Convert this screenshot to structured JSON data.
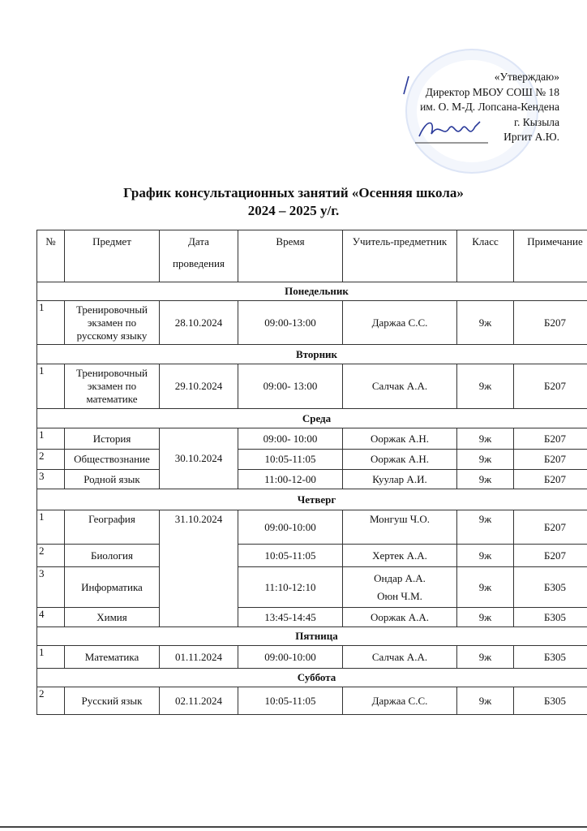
{
  "approval": {
    "line1": "«Утверждаю»",
    "line2": "Директор МБОУ СОШ № 18",
    "line3": "им. О. М-Д. Лопсана-Кендена",
    "line4": "г. Кызыла",
    "line5": "Иргит А.Ю."
  },
  "title": {
    "line1": "График консультационных занятий «Осенняя школа»",
    "line2": "2024 – 2025 у/г."
  },
  "table": {
    "headers": [
      "№",
      "Предмет",
      "Дата проведения",
      "Время",
      "Учитель-предметник",
      "Класс",
      "Примечание"
    ],
    "days": {
      "mon": "Понедельник",
      "tue": "Вторник",
      "wed": "Среда",
      "thu": "Четверг",
      "fri": "Пятница",
      "sat": "Суббота"
    },
    "mon": [
      {
        "n": "1",
        "subject": "Тренировочный экзамен по русскому языку",
        "date": "28.10.2024",
        "time": "09:00-13:00",
        "teacher": "Даржаа С.С.",
        "class": "9ж",
        "note": "Б207"
      }
    ],
    "tue": [
      {
        "n": "1",
        "subject": "Тренировочный экзамен по математике",
        "date": "29.10.2024",
        "time": "09:00- 13:00",
        "teacher": "Салчак А.А.",
        "class": "9ж",
        "note": "Б207"
      }
    ],
    "wed": {
      "date": "30.10.2024",
      "rows": [
        {
          "n": "1",
          "subject": "История",
          "time": "09:00- 10:00",
          "teacher": "Ооржак А.Н.",
          "class": "9ж",
          "note": "Б207"
        },
        {
          "n": "2",
          "subject": "Обществознание",
          "time": "10:05-11:05",
          "teacher": "Ооржак А.Н.",
          "class": "9ж",
          "note": "Б207"
        },
        {
          "n": "3",
          "subject": "Родной язык",
          "time": "11:00-12-00",
          "teacher": "Куулар А.И.",
          "class": "9ж",
          "note": "Б207"
        }
      ]
    },
    "thu": {
      "date": "31.10.2024",
      "rows": [
        {
          "n": "1",
          "subject": "География",
          "time": "09:00-10:00",
          "teacher": "Монгуш Ч.О.",
          "class": "9ж",
          "note": "Б207"
        },
        {
          "n": "2",
          "subject": "Биология",
          "time": "10:05-11:05",
          "teacher": "Хертек А.А.",
          "class": "9ж",
          "note": "Б207"
        },
        {
          "n": "3",
          "subject": "Информатика",
          "time": "11:10-12:10",
          "teacher": "Ондар А.А.",
          "teacher2": "Оюн Ч.М.",
          "class": "9ж",
          "note": "Б305"
        },
        {
          "n": "4",
          "subject": "Химия",
          "time": "13:45-14:45",
          "teacher": "Ооржак А.А.",
          "class": "9ж",
          "note": "Б305"
        }
      ]
    },
    "fri": [
      {
        "n": "1",
        "subject": "Математика",
        "date": "01.11.2024",
        "time": "09:00-10:00",
        "teacher": "Салчак А.А.",
        "class": "9ж",
        "note": "Б305"
      }
    ],
    "sat": [
      {
        "n": "2",
        "subject": "Русский язык",
        "date": "02.11.2024",
        "time": "10:05-11:05",
        "teacher": "Даржаа С.С.",
        "class": "9ж",
        "note": "Б305"
      }
    ]
  }
}
